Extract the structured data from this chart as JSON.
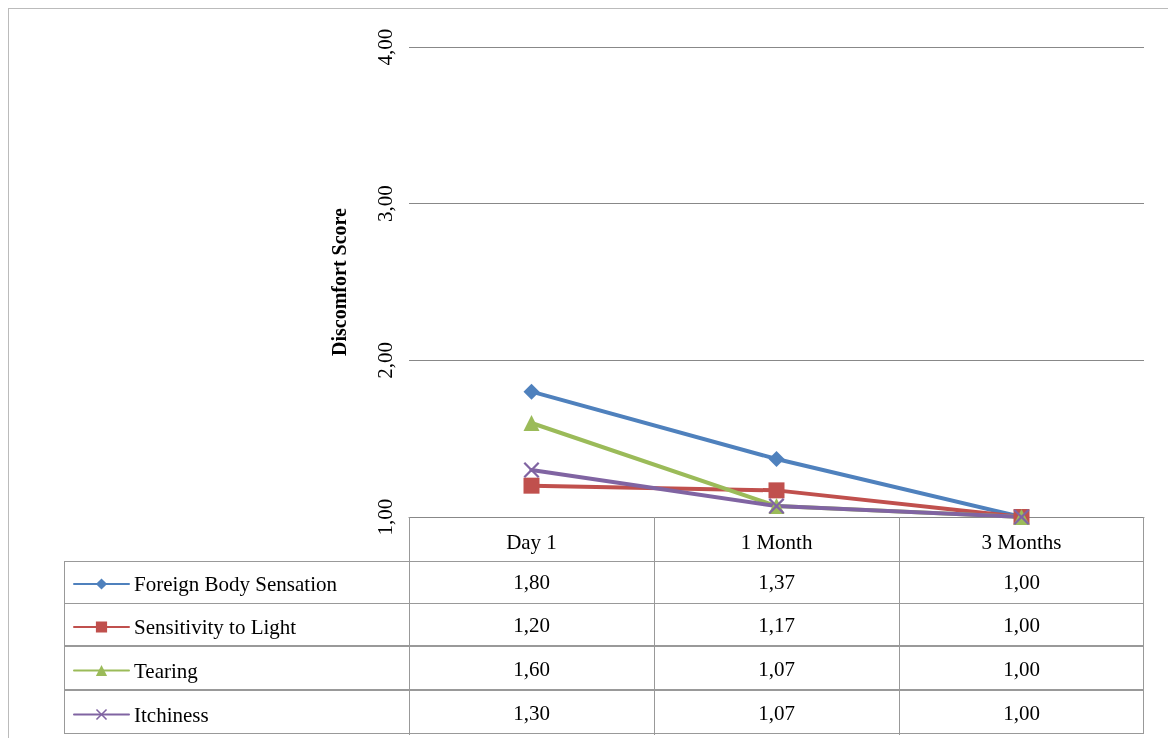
{
  "chart_data": {
    "type": "line",
    "ylabel": "Discomfort Score",
    "categories": [
      "Day 1",
      "1 Month",
      "3 Months"
    ],
    "ylim": [
      1,
      4
    ],
    "yticks": [
      {
        "value": 1,
        "label": "1,00"
      },
      {
        "value": 2,
        "label": "2,00"
      },
      {
        "value": 3,
        "label": "3,00"
      },
      {
        "value": 4,
        "label": "4,00"
      }
    ],
    "grid": "y",
    "legend": "bottom left",
    "series": [
      {
        "name": "Foreign Body Sensation",
        "color": "#4f81bd",
        "marker": "diamond",
        "values": [
          1.8,
          1.37,
          1.0
        ],
        "value_labels": [
          "1,80",
          "1,37",
          "1,00"
        ]
      },
      {
        "name": "Sensitivity to Light",
        "color": "#c0504d",
        "marker": "square",
        "values": [
          1.2,
          1.17,
          1.0
        ],
        "value_labels": [
          "1,20",
          "1,17",
          "1,00"
        ]
      },
      {
        "name": "Tearing",
        "color": "#9bbb59",
        "marker": "triangle",
        "values": [
          1.6,
          1.07,
          1.0
        ],
        "value_labels": [
          "1,60",
          "1,07",
          "1,00"
        ]
      },
      {
        "name": "Itchiness",
        "color": "#8064a2",
        "marker": "cross",
        "values": [
          1.3,
          1.07,
          1.0
        ],
        "value_labels": [
          "1,30",
          "1,07",
          "1,00"
        ]
      }
    ]
  }
}
